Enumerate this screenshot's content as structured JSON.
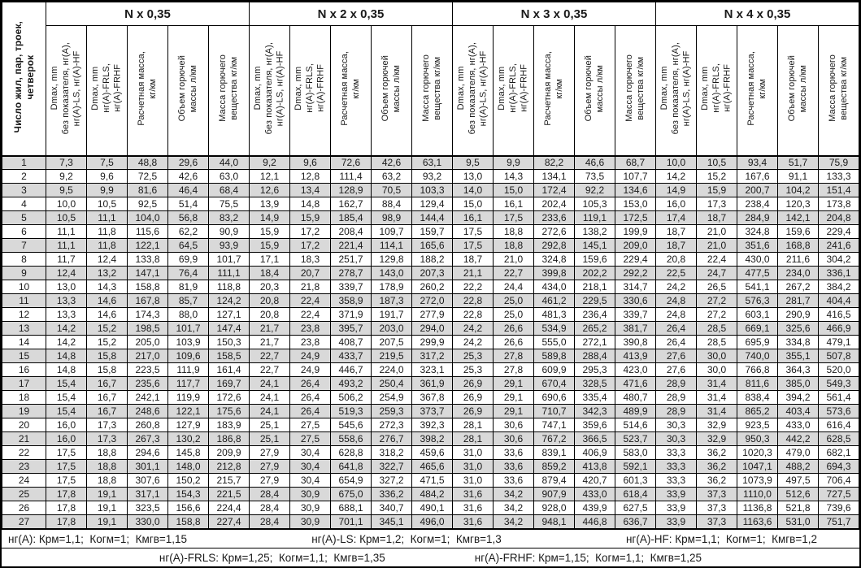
{
  "colors": {
    "row_shade": "#d9d9d9",
    "border": "#000000",
    "text": "#1a1a1a",
    "background": "#ffffff"
  },
  "table": {
    "corner_header": "Число жил, пар, троек,\nчетверок",
    "groups": [
      "N x 0,35",
      "N x 2 x 0,35",
      "N x 3 x 0,35",
      "N x 4 x 0,35"
    ],
    "sub_headers": [
      "Dmax, mm\nбез показателя, нг(А),\nнг(А)-LS, нг(А)-HF",
      "Dmax, mm\nнг(А)-FRLS,\nнг(А)-FRHF",
      "Расчетная масса,\nкг/км",
      "Объем горючей\nмассы л/км",
      "Масса горючего\nвещества кг/км"
    ],
    "rows": [
      {
        "n": "1",
        "values": [
          "7,3",
          "7,5",
          "48,8",
          "29,6",
          "44,0",
          "9,2",
          "9,6",
          "72,6",
          "42,6",
          "63,1",
          "9,5",
          "9,9",
          "82,2",
          "46,6",
          "68,7",
          "10,0",
          "10,5",
          "93,4",
          "51,7",
          "75,9"
        ]
      },
      {
        "n": "2",
        "values": [
          "9,2",
          "9,6",
          "72,5",
          "42,6",
          "63,0",
          "12,1",
          "12,8",
          "111,4",
          "63,2",
          "93,2",
          "13,0",
          "14,3",
          "134,1",
          "73,5",
          "107,7",
          "14,2",
          "15,2",
          "167,6",
          "91,1",
          "133,3"
        ]
      },
      {
        "n": "3",
        "values": [
          "9,5",
          "9,9",
          "81,6",
          "46,4",
          "68,4",
          "12,6",
          "13,4",
          "128,9",
          "70,5",
          "103,3",
          "14,0",
          "15,0",
          "172,4",
          "92,2",
          "134,6",
          "14,9",
          "15,9",
          "200,7",
          "104,2",
          "151,4"
        ]
      },
      {
        "n": "4",
        "values": [
          "10,0",
          "10,5",
          "92,5",
          "51,4",
          "75,5",
          "13,9",
          "14,8",
          "162,7",
          "88,4",
          "129,4",
          "15,0",
          "16,1",
          "202,4",
          "105,3",
          "153,0",
          "16,0",
          "17,3",
          "238,4",
          "120,3",
          "173,8"
        ]
      },
      {
        "n": "5",
        "values": [
          "10,5",
          "11,1",
          "104,0",
          "56,8",
          "83,2",
          "14,9",
          "15,9",
          "185,4",
          "98,9",
          "144,4",
          "16,1",
          "17,5",
          "233,6",
          "119,1",
          "172,5",
          "17,4",
          "18,7",
          "284,9",
          "142,1",
          "204,8"
        ]
      },
      {
        "n": "6",
        "values": [
          "11,1",
          "11,8",
          "115,6",
          "62,2",
          "90,9",
          "15,9",
          "17,2",
          "208,4",
          "109,7",
          "159,7",
          "17,5",
          "18,8",
          "272,6",
          "138,2",
          "199,9",
          "18,7",
          "21,0",
          "324,8",
          "159,6",
          "229,4"
        ]
      },
      {
        "n": "7",
        "values": [
          "11,1",
          "11,8",
          "122,1",
          "64,5",
          "93,9",
          "15,9",
          "17,2",
          "221,4",
          "114,1",
          "165,6",
          "17,5",
          "18,8",
          "292,8",
          "145,1",
          "209,0",
          "18,7",
          "21,0",
          "351,6",
          "168,8",
          "241,6"
        ]
      },
      {
        "n": "8",
        "values": [
          "11,7",
          "12,4",
          "133,8",
          "69,9",
          "101,7",
          "17,1",
          "18,3",
          "251,7",
          "129,8",
          "188,2",
          "18,7",
          "21,0",
          "324,8",
          "159,6",
          "229,4",
          "20,8",
          "22,4",
          "430,0",
          "211,6",
          "304,2"
        ]
      },
      {
        "n": "9",
        "values": [
          "12,4",
          "13,2",
          "147,1",
          "76,4",
          "111,1",
          "18,4",
          "20,7",
          "278,7",
          "143,0",
          "207,3",
          "21,1",
          "22,7",
          "399,8",
          "202,2",
          "292,2",
          "22,5",
          "24,7",
          "477,5",
          "234,0",
          "336,1"
        ]
      },
      {
        "n": "10",
        "values": [
          "13,0",
          "14,3",
          "158,8",
          "81,9",
          "118,8",
          "20,3",
          "21,8",
          "339,7",
          "178,9",
          "260,2",
          "22,2",
          "24,4",
          "434,0",
          "218,1",
          "314,7",
          "24,2",
          "26,5",
          "541,1",
          "267,2",
          "384,2"
        ]
      },
      {
        "n": "11",
        "values": [
          "13,3",
          "14,6",
          "167,8",
          "85,7",
          "124,2",
          "20,8",
          "22,4",
          "358,9",
          "187,3",
          "272,0",
          "22,8",
          "25,0",
          "461,2",
          "229,5",
          "330,6",
          "24,8",
          "27,2",
          "576,3",
          "281,7",
          "404,4"
        ]
      },
      {
        "n": "12",
        "values": [
          "13,3",
          "14,6",
          "174,3",
          "88,0",
          "127,1",
          "20,8",
          "22,4",
          "371,9",
          "191,7",
          "277,9",
          "22,8",
          "25,0",
          "481,3",
          "236,4",
          "339,7",
          "24,8",
          "27,2",
          "603,1",
          "290,9",
          "416,5"
        ]
      },
      {
        "n": "13",
        "values": [
          "14,2",
          "15,2",
          "198,5",
          "101,7",
          "147,4",
          "21,7",
          "23,8",
          "395,7",
          "203,0",
          "294,0",
          "24,2",
          "26,6",
          "534,9",
          "265,2",
          "381,7",
          "26,4",
          "28,5",
          "669,1",
          "325,6",
          "466,9"
        ]
      },
      {
        "n": "14",
        "values": [
          "14,2",
          "15,2",
          "205,0",
          "103,9",
          "150,3",
          "21,7",
          "23,8",
          "408,7",
          "207,5",
          "299,9",
          "24,2",
          "26,6",
          "555,0",
          "272,1",
          "390,8",
          "26,4",
          "28,5",
          "695,9",
          "334,8",
          "479,1"
        ]
      },
      {
        "n": "15",
        "values": [
          "14,8",
          "15,8",
          "217,0",
          "109,6",
          "158,5",
          "22,7",
          "24,9",
          "433,7",
          "219,5",
          "317,2",
          "25,3",
          "27,8",
          "589,8",
          "288,4",
          "413,9",
          "27,6",
          "30,0",
          "740,0",
          "355,1",
          "507,8"
        ]
      },
      {
        "n": "16",
        "values": [
          "14,8",
          "15,8",
          "223,5",
          "111,9",
          "161,4",
          "22,7",
          "24,9",
          "446,7",
          "224,0",
          "323,1",
          "25,3",
          "27,8",
          "609,9",
          "295,3",
          "423,0",
          "27,6",
          "30,0",
          "766,8",
          "364,3",
          "520,0"
        ]
      },
      {
        "n": "17",
        "values": [
          "15,4",
          "16,7",
          "235,6",
          "117,7",
          "169,7",
          "24,1",
          "26,4",
          "493,2",
          "250,4",
          "361,9",
          "26,9",
          "29,1",
          "670,4",
          "328,5",
          "471,6",
          "28,9",
          "31,4",
          "811,6",
          "385,0",
          "549,3"
        ]
      },
      {
        "n": "18",
        "values": [
          "15,4",
          "16,7",
          "242,1",
          "119,9",
          "172,6",
          "24,1",
          "26,4",
          "506,2",
          "254,9",
          "367,8",
          "26,9",
          "29,1",
          "690,6",
          "335,4",
          "480,7",
          "28,9",
          "31,4",
          "838,4",
          "394,2",
          "561,4"
        ]
      },
      {
        "n": "19",
        "values": [
          "15,4",
          "16,7",
          "248,6",
          "122,1",
          "175,6",
          "24,1",
          "26,4",
          "519,3",
          "259,3",
          "373,7",
          "26,9",
          "29,1",
          "710,7",
          "342,3",
          "489,9",
          "28,9",
          "31,4",
          "865,2",
          "403,4",
          "573,6"
        ]
      },
      {
        "n": "20",
        "values": [
          "16,0",
          "17,3",
          "260,8",
          "127,9",
          "183,9",
          "25,1",
          "27,5",
          "545,6",
          "272,3",
          "392,3",
          "28,1",
          "30,6",
          "747,1",
          "359,6",
          "514,6",
          "30,3",
          "32,9",
          "923,5",
          "433,0",
          "616,4"
        ]
      },
      {
        "n": "21",
        "values": [
          "16,0",
          "17,3",
          "267,3",
          "130,2",
          "186,8",
          "25,1",
          "27,5",
          "558,6",
          "276,7",
          "398,2",
          "28,1",
          "30,6",
          "767,2",
          "366,5",
          "523,7",
          "30,3",
          "32,9",
          "950,3",
          "442,2",
          "628,5"
        ]
      },
      {
        "n": "22",
        "values": [
          "17,5",
          "18,8",
          "294,6",
          "145,8",
          "209,9",
          "27,9",
          "30,4",
          "628,8",
          "318,2",
          "459,6",
          "31,0",
          "33,6",
          "839,1",
          "406,9",
          "583,0",
          "33,3",
          "36,2",
          "1020,3",
          "479,0",
          "682,1"
        ]
      },
      {
        "n": "23",
        "values": [
          "17,5",
          "18,8",
          "301,1",
          "148,0",
          "212,8",
          "27,9",
          "30,4",
          "641,8",
          "322,7",
          "465,6",
          "31,0",
          "33,6",
          "859,2",
          "413,8",
          "592,1",
          "33,3",
          "36,2",
          "1047,1",
          "488,2",
          "694,3"
        ]
      },
      {
        "n": "24",
        "values": [
          "17,5",
          "18,8",
          "307,6",
          "150,2",
          "215,7",
          "27,9",
          "30,4",
          "654,9",
          "327,2",
          "471,5",
          "31,0",
          "33,6",
          "879,4",
          "420,7",
          "601,3",
          "33,3",
          "36,2",
          "1073,9",
          "497,5",
          "706,4"
        ]
      },
      {
        "n": "25",
        "values": [
          "17,8",
          "19,1",
          "317,1",
          "154,3",
          "221,5",
          "28,4",
          "30,9",
          "675,0",
          "336,2",
          "484,2",
          "31,6",
          "34,2",
          "907,9",
          "433,0",
          "618,4",
          "33,9",
          "37,3",
          "1110,0",
          "512,6",
          "727,5"
        ]
      },
      {
        "n": "26",
        "values": [
          "17,8",
          "19,1",
          "323,5",
          "156,6",
          "224,4",
          "28,4",
          "30,9",
          "688,1",
          "340,7",
          "490,1",
          "31,6",
          "34,2",
          "928,0",
          "439,9",
          "627,5",
          "33,9",
          "37,3",
          "1136,8",
          "521,8",
          "739,6"
        ]
      },
      {
        "n": "27",
        "values": [
          "17,8",
          "19,1",
          "330,0",
          "158,8",
          "227,4",
          "28,4",
          "30,9",
          "701,1",
          "345,1",
          "496,0",
          "31,6",
          "34,2",
          "948,1",
          "446,8",
          "636,7",
          "33,9",
          "37,3",
          "1163,6",
          "531,0",
          "751,7"
        ]
      }
    ]
  },
  "footnotes": {
    "row1": [
      "нг(А): Крм=1,1;  Когм=1;  Кмгв=1,15",
      "нг(А)-LS: Крм=1,2;  Когм=1;  Кмгв=1,3",
      "нг(А)-HF: Крм=1,1;  Когм=1;  Кмгв=1,2"
    ],
    "row2": [
      "нг(А)-FRLS: Крм=1,25;  Когм=1,1;  Кмгв=1,35",
      "нг(А)-FRHF: Крм=1,15;  Когм=1,1;  Кмгв=1,25"
    ]
  }
}
